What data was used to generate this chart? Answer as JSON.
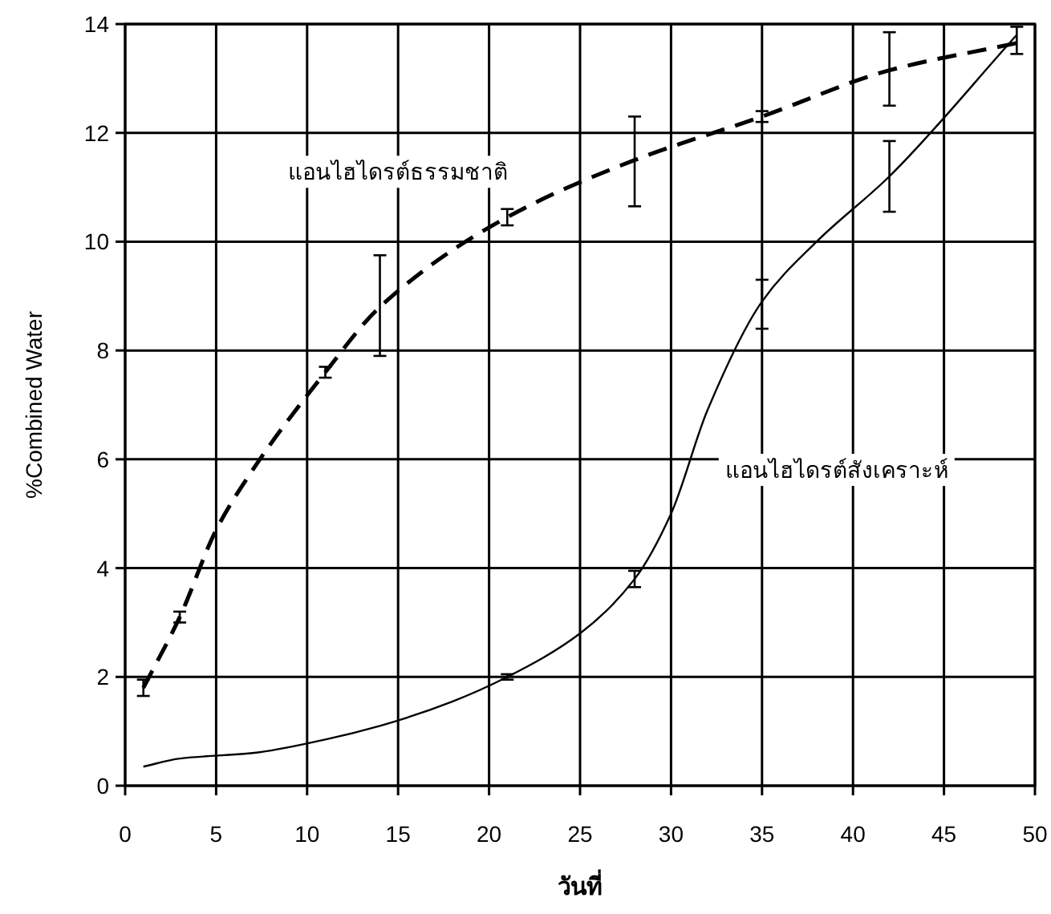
{
  "chart_data": {
    "type": "line",
    "xlabel": "วันที่",
    "ylabel": "%Combined Water",
    "xlim": [
      0,
      50
    ],
    "ylim": [
      0,
      14
    ],
    "xticks": [
      0,
      5,
      10,
      15,
      20,
      25,
      30,
      35,
      40,
      45,
      50
    ],
    "yticks": [
      0,
      2,
      4,
      6,
      8,
      10,
      12,
      14
    ],
    "grid": true,
    "legend": false,
    "marker": "none",
    "series": [
      {
        "name": "แอนไฮไดรต์ธรรมชาติ",
        "color": "#000000",
        "line_style": "dashed",
        "x": [
          1,
          3,
          5,
          7,
          11,
          14,
          21,
          28,
          35,
          42,
          49
        ],
        "values": [
          1.8,
          3.1,
          4.7,
          5.8,
          7.6,
          8.8,
          10.45,
          11.5,
          12.3,
          13.15,
          13.65
        ],
        "errors": [
          0.15,
          0.1,
          null,
          null,
          0.1,
          [
            7.9,
            9.75
          ],
          0.15,
          [
            10.65,
            12.3
          ],
          0.1,
          [
            12.5,
            13.85
          ],
          [
            13.45,
            13.95
          ]
        ]
      },
      {
        "name": "แอนไฮไดรต์สังเคราะห์",
        "color": "#000000",
        "line_style": "solid",
        "x": [
          1,
          3,
          7,
          11,
          14,
          18,
          21,
          25,
          28,
          30,
          32,
          35,
          38,
          42,
          49
        ],
        "values": [
          0.35,
          0.5,
          0.6,
          0.85,
          1.1,
          1.55,
          2.0,
          2.8,
          3.8,
          5.0,
          6.9,
          8.9,
          10.0,
          11.2,
          13.8
        ],
        "errors": [
          null,
          null,
          null,
          null,
          null,
          null,
          0.05,
          null,
          0.15,
          null,
          null,
          [
            8.4,
            9.3
          ],
          null,
          [
            10.55,
            11.85
          ],
          null
        ]
      }
    ]
  }
}
